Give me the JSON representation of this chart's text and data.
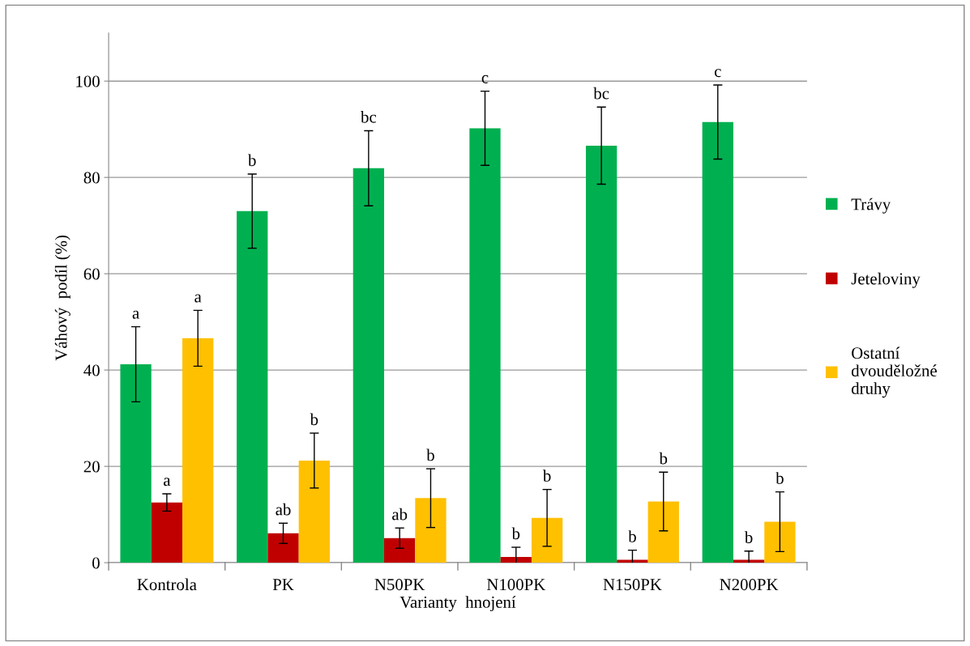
{
  "chart_data": {
    "type": "bar",
    "xlabel": "Varianty  hnojení",
    "ylabel": "Váhový  podíl (%)",
    "categories": [
      "Kontrola",
      "PK",
      "N50PK",
      "N100PK",
      "N150PK",
      "N200PK"
    ],
    "series": [
      {
        "name": "Trávy",
        "color": "#00b050",
        "values": [
          41.2,
          73.0,
          81.9,
          90.2,
          86.6,
          91.5
        ],
        "errors": [
          7.8,
          7.7,
          7.8,
          7.7,
          8.0,
          7.7
        ],
        "value_labels": [
          "a",
          "b",
          "bc",
          "c",
          "bc",
          "c"
        ]
      },
      {
        "name": "Jeteloviny",
        "color": "#c00000",
        "values": [
          12.5,
          6.1,
          5.1,
          1.2,
          0.6,
          0.6
        ],
        "errors": [
          1.8,
          2.1,
          2.1,
          2.0,
          2.0,
          1.8
        ],
        "value_labels": [
          "a",
          "ab",
          "ab",
          "b",
          "b",
          "b"
        ]
      },
      {
        "name": "Ostatní dvouděložné druhy",
        "color": "#ffc000",
        "values": [
          46.6,
          21.2,
          13.4,
          9.3,
          12.7,
          8.5
        ],
        "errors": [
          5.8,
          5.7,
          6.1,
          5.9,
          6.1,
          6.2
        ],
        "value_labels": [
          "a",
          "b",
          "b",
          "b",
          "b",
          "b"
        ]
      }
    ],
    "ylim": [
      0,
      110
    ],
    "yticks": [
      0,
      20,
      40,
      60,
      80,
      100
    ],
    "grid": "y",
    "legend": "right"
  }
}
